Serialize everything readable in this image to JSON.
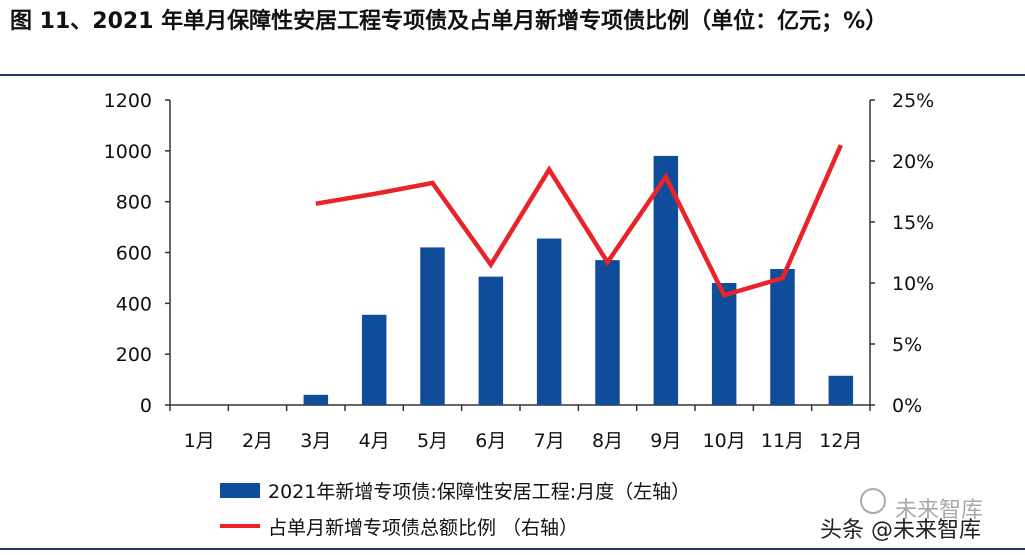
{
  "title": "图 11、2021 年单月保障性安居工程专项债及占单月新增专项债比例（单位：亿元；%）",
  "chart_data": {
    "type": "bar+line",
    "categories": [
      "1月",
      "2月",
      "3月",
      "4月",
      "5月",
      "6月",
      "7月",
      "8月",
      "9月",
      "10月",
      "11月",
      "12月"
    ],
    "series": [
      {
        "name": "2021年新增专项债:保障性安居工程:月度（左轴）",
        "type": "bar",
        "axis": "left",
        "color": "#0f4d9a",
        "values": [
          0,
          0,
          40,
          355,
          620,
          505,
          655,
          570,
          980,
          480,
          535,
          115
        ]
      },
      {
        "name": "占单月新增专项债总额比例 （右轴）",
        "type": "line",
        "axis": "right",
        "color": "#e8232a",
        "values": [
          null,
          null,
          16.5,
          17.3,
          18.2,
          11.5,
          19.3,
          11.7,
          18.7,
          9.0,
          10.4,
          21.3
        ]
      }
    ],
    "y_left": {
      "min": 0,
      "max": 1200,
      "ticks": [
        0,
        200,
        400,
        600,
        800,
        1000,
        1200
      ]
    },
    "y_right": {
      "min": 0,
      "max": 25,
      "ticks": [
        "0%",
        "5%",
        "10%",
        "15%",
        "20%",
        "25%"
      ]
    },
    "legend_position": "bottom"
  },
  "watermark": {
    "brand": "未来智库",
    "source": "头条 @未来智库"
  }
}
